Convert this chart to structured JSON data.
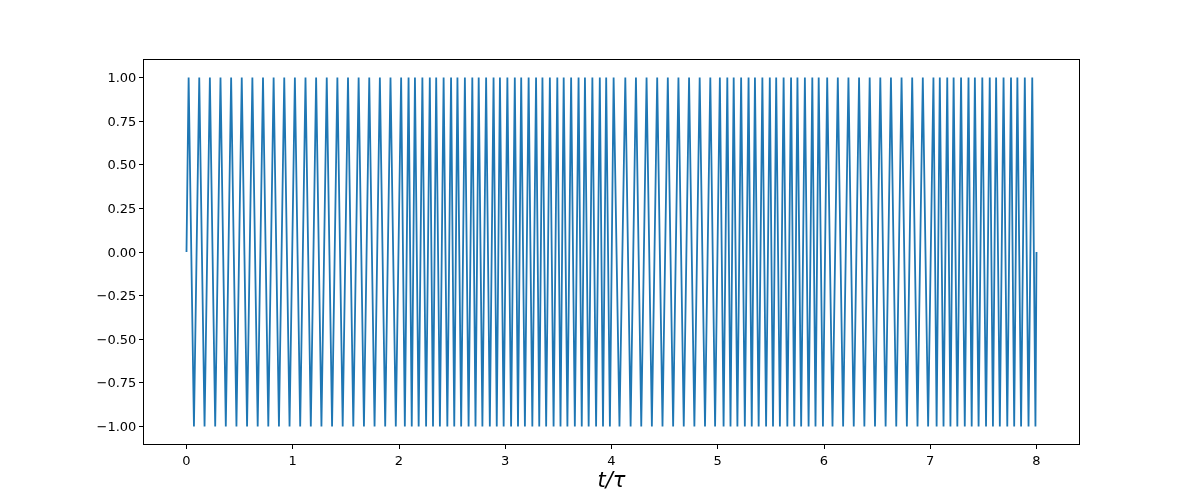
{
  "chart_data": {
    "type": "line",
    "xlabel": "t/τ",
    "series": [
      {
        "color": "#1f77b4",
        "x": [
          0,
          0.02,
          0.07,
          0.12,
          0.17,
          0.22,
          0.27,
          0.32,
          0.37,
          0.42,
          0.47,
          0.52,
          0.57,
          0.62,
          0.67,
          0.72,
          0.77,
          0.82,
          0.87,
          0.92,
          0.97,
          1.02,
          1.07,
          1.12,
          1.17,
          1.22,
          1.27,
          1.32,
          1.37,
          1.42,
          1.47,
          1.52,
          1.57,
          1.62,
          1.67,
          1.72,
          1.77,
          1.82,
          1.87,
          1.92,
          1.97,
          2.02,
          2.055,
          2.09,
          2.12,
          2.15,
          2.185,
          2.22,
          2.255,
          2.29,
          2.32,
          2.35,
          2.385,
          2.42,
          2.455,
          2.49,
          2.52,
          2.55,
          2.585,
          2.62,
          2.655,
          2.69,
          2.72,
          2.75,
          2.785,
          2.82,
          2.855,
          2.89,
          2.92,
          2.95,
          2.985,
          3.02,
          3.055,
          3.09,
          3.12,
          3.15,
          3.185,
          3.22,
          3.255,
          3.29,
          3.32,
          3.35,
          3.385,
          3.42,
          3.455,
          3.49,
          3.52,
          3.55,
          3.585,
          3.62,
          3.655,
          3.69,
          3.72,
          3.75,
          3.785,
          3.82,
          3.855,
          3.89,
          3.92,
          3.95,
          3.985,
          4.02,
          4.075,
          4.13,
          4.18,
          4.23,
          4.28,
          4.33,
          4.38,
          4.43,
          4.48,
          4.53,
          4.58,
          4.63,
          4.68,
          4.73,
          4.78,
          4.83,
          4.88,
          4.93,
          4.975,
          5.02,
          5.055,
          5.09,
          5.12,
          5.15,
          5.185,
          5.22,
          5.255,
          5.29,
          5.32,
          5.35,
          5.385,
          5.42,
          5.455,
          5.49,
          5.52,
          5.55,
          5.585,
          5.62,
          5.655,
          5.69,
          5.72,
          5.75,
          5.785,
          5.82,
          5.855,
          5.89,
          5.92,
          5.95,
          5.99,
          6.03,
          6.08,
          6.13,
          6.18,
          6.23,
          6.28,
          6.33,
          6.38,
          6.43,
          6.48,
          6.53,
          6.58,
          6.63,
          6.68,
          6.73,
          6.78,
          6.83,
          6.88,
          6.93,
          6.98,
          7.03,
          7.06,
          7.09,
          7.125,
          7.16,
          7.19,
          7.22,
          7.255,
          7.29,
          7.325,
          7.36,
          7.39,
          7.42,
          7.455,
          7.49,
          7.525,
          7.56,
          7.59,
          7.62,
          7.655,
          7.69,
          7.725,
          7.76,
          7.79,
          7.82,
          7.855,
          7.89,
          7.925,
          7.96,
          7.99,
          8
        ],
        "values": [
          0,
          1,
          -1,
          1,
          -1,
          1,
          -1,
          1,
          -1,
          1,
          -1,
          1,
          -1,
          1,
          -1,
          1,
          -1,
          1,
          -1,
          1,
          -1,
          1,
          -1,
          1,
          -1,
          1,
          -1,
          1,
          -1,
          1,
          -1,
          1,
          -1,
          1,
          -1,
          1,
          -1,
          1,
          -1,
          1,
          -1,
          1,
          -1,
          1,
          -1,
          1,
          -1,
          1,
          -1,
          1,
          -1,
          1,
          -1,
          1,
          -1,
          1,
          -1,
          1,
          -1,
          1,
          -1,
          1,
          -1,
          1,
          -1,
          1,
          -1,
          1,
          -1,
          1,
          -1,
          1,
          -1,
          1,
          -1,
          1,
          -1,
          1,
          -1,
          1,
          -1,
          1,
          -1,
          1,
          -1,
          1,
          -1,
          1,
          -1,
          1,
          -1,
          1,
          -1,
          1,
          -1,
          1,
          -1,
          1,
          -1,
          1,
          -1,
          1,
          -1,
          1,
          -1,
          1,
          -1,
          1,
          -1,
          1,
          -1,
          1,
          -1,
          1,
          -1,
          1,
          -1,
          1,
          -1,
          1,
          -1,
          1,
          -1,
          1,
          -1,
          1,
          -1,
          1,
          -1,
          1,
          -1,
          1,
          -1,
          1,
          -1,
          1,
          -1,
          1,
          -1,
          1,
          -1,
          1,
          -1,
          1,
          -1,
          1,
          -1,
          1,
          -1,
          1,
          -1,
          1,
          -1,
          1,
          -1,
          1,
          -1,
          1,
          -1,
          1,
          -1,
          1,
          -1,
          1,
          -1,
          1,
          -1,
          1,
          -1,
          1,
          -1,
          1,
          -1,
          1,
          -1,
          1,
          -1,
          1,
          -1,
          1,
          -1,
          1,
          -1,
          1,
          -1,
          1,
          -1,
          1,
          -1,
          1,
          -1,
          1,
          -1,
          1,
          -1,
          1,
          -1,
          1,
          -1,
          1,
          -1,
          0
        ]
      }
    ],
    "xlim": [
      -0.4,
      8.4
    ],
    "xticks": [
      0,
      1,
      2,
      3,
      4,
      5,
      6,
      7,
      8
    ],
    "ylim": [
      -1.1,
      1.1
    ],
    "yticks": [
      {
        "value": -1,
        "label": "−1.00"
      },
      {
        "value": -0.75,
        "label": "−0.75"
      },
      {
        "value": -0.5,
        "label": "−0.50"
      },
      {
        "value": -0.25,
        "label": "−0.25"
      },
      {
        "value": 0,
        "label": "0.00"
      },
      {
        "value": 0.25,
        "label": "0.25"
      },
      {
        "value": 0.5,
        "label": "0.50"
      },
      {
        "value": 0.75,
        "label": "0.75"
      },
      {
        "value": 1,
        "label": "1.00"
      }
    ],
    "line_style": "solid"
  }
}
